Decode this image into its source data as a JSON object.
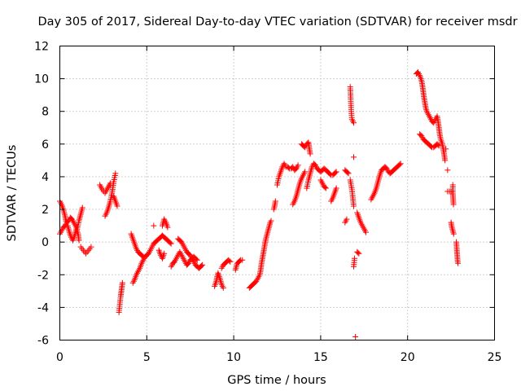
{
  "chart_data": {
    "type": "scatter",
    "title": "Day 305 of 2017, Sidereal Day-to-day VTEC variation (SDTVAR) for receiver msdr",
    "xlabel": "GPS time / hours",
    "ylabel": "SDTVAR / TECUs",
    "xlim": [
      0,
      25
    ],
    "ylim": [
      -6,
      12
    ],
    "xticks": [
      0,
      5,
      10,
      15,
      20,
      25
    ],
    "yticks": [
      -6,
      -4,
      -2,
      0,
      2,
      4,
      6,
      8,
      10,
      12
    ],
    "xtick_labels": [
      "0",
      "5",
      "10",
      "15",
      "20",
      "25"
    ],
    "ytick_labels": [
      "-6",
      "-4",
      "-2",
      "0",
      "2",
      "4",
      "6",
      "8",
      "10",
      "12"
    ],
    "grid": true,
    "marker": "+",
    "color": "#ff0000",
    "segments": [
      [
        [
          0.0,
          0.5
        ],
        [
          0.1,
          0.7
        ],
        [
          0.2,
          0.9
        ],
        [
          0.3,
          1.0
        ],
        [
          0.4,
          1.2
        ],
        [
          0.5,
          1.3
        ],
        [
          0.6,
          1.5
        ],
        [
          0.7,
          1.4
        ],
        [
          0.8,
          1.2
        ],
        [
          0.9,
          1.0
        ],
        [
          1.0,
          0.8
        ],
        [
          1.1,
          1.3
        ],
        [
          1.2,
          1.7
        ],
        [
          1.3,
          2.1
        ]
      ],
      [
        [
          0.0,
          2.5
        ],
        [
          0.1,
          2.3
        ],
        [
          0.2,
          2.0
        ],
        [
          0.3,
          1.6
        ],
        [
          0.35,
          1.3
        ]
      ],
      [
        [
          0.45,
          1.0
        ],
        [
          0.55,
          0.6
        ],
        [
          0.65,
          0.3
        ],
        [
          0.75,
          0.1
        ],
        [
          0.85,
          0.4
        ],
        [
          0.95,
          0.8
        ],
        [
          1.05,
          0.5
        ],
        [
          1.1,
          0.1
        ]
      ],
      [
        [
          1.2,
          -0.3
        ],
        [
          1.35,
          -0.5
        ],
        [
          1.5,
          -0.7
        ],
        [
          1.65,
          -0.5
        ],
        [
          1.8,
          -0.3
        ]
      ],
      [
        [
          2.3,
          3.5
        ],
        [
          2.45,
          3.2
        ],
        [
          2.6,
          3.0
        ],
        [
          2.75,
          3.3
        ],
        [
          2.9,
          3.6
        ]
      ],
      [
        [
          2.6,
          1.6
        ],
        [
          2.7,
          1.8
        ],
        [
          2.8,
          2.1
        ],
        [
          2.9,
          2.5
        ],
        [
          3.0,
          3.0
        ],
        [
          3.1,
          3.7
        ],
        [
          3.2,
          4.2
        ]
      ],
      [
        [
          3.1,
          2.8
        ],
        [
          3.2,
          2.5
        ],
        [
          3.3,
          2.2
        ]
      ],
      [
        [
          3.4,
          -4.3
        ],
        [
          3.45,
          -3.8
        ],
        [
          3.5,
          -3.3
        ],
        [
          3.55,
          -2.9
        ],
        [
          3.6,
          -2.5
        ]
      ],
      [
        [
          4.1,
          0.5
        ],
        [
          4.2,
          0.2
        ],
        [
          4.3,
          -0.1
        ],
        [
          4.4,
          -0.4
        ],
        [
          4.5,
          -0.6
        ],
        [
          4.6,
          -0.7
        ],
        [
          4.7,
          -0.8
        ],
        [
          4.8,
          -0.9
        ],
        [
          4.9,
          -0.9
        ],
        [
          5.0,
          -0.8
        ],
        [
          5.1,
          -0.7
        ],
        [
          5.2,
          -0.5
        ],
        [
          5.3,
          -0.3
        ],
        [
          5.4,
          -0.1
        ],
        [
          5.5,
          0.0
        ],
        [
          5.6,
          0.1
        ],
        [
          5.7,
          0.2
        ],
        [
          5.8,
          0.3
        ],
        [
          5.9,
          0.4
        ],
        [
          6.0,
          0.3
        ],
        [
          6.1,
          0.2
        ],
        [
          6.2,
          0.1
        ],
        [
          6.3,
          0.0
        ],
        [
          6.4,
          -0.1
        ]
      ],
      [
        [
          4.2,
          -2.5
        ],
        [
          4.3,
          -2.3
        ],
        [
          4.4,
          -2.0
        ],
        [
          4.5,
          -1.8
        ],
        [
          4.6,
          -1.6
        ],
        [
          4.7,
          -1.3
        ],
        [
          4.8,
          -1.1
        ],
        [
          4.9,
          -0.9
        ]
      ],
      [
        [
          5.9,
          1.0
        ],
        [
          6.0,
          1.4
        ],
        [
          6.1,
          1.2
        ],
        [
          6.2,
          0.9
        ]
      ],
      [
        [
          5.4,
          1.0
        ]
      ],
      [
        [
          5.7,
          -0.5
        ],
        [
          5.8,
          -0.8
        ],
        [
          5.9,
          -1.0
        ],
        [
          6.0,
          -0.7
        ]
      ],
      [
        [
          6.4,
          -1.5
        ],
        [
          6.5,
          -1.3
        ],
        [
          6.6,
          -1.2
        ],
        [
          6.7,
          -1.0
        ],
        [
          6.8,
          -0.8
        ],
        [
          6.9,
          -0.6
        ],
        [
          7.0,
          -0.8
        ],
        [
          7.1,
          -1.0
        ],
        [
          7.2,
          -1.2
        ],
        [
          7.3,
          -1.4
        ],
        [
          7.4,
          -1.3
        ],
        [
          7.5,
          -1.1
        ],
        [
          7.6,
          -1.0
        ],
        [
          7.7,
          -0.9
        ],
        [
          7.8,
          -1.0
        ],
        [
          7.9,
          -1.1
        ]
      ],
      [
        [
          6.8,
          0.2
        ],
        [
          6.9,
          0.1
        ],
        [
          7.0,
          0.0
        ],
        [
          7.1,
          -0.2
        ],
        [
          7.2,
          -0.4
        ],
        [
          7.3,
          -0.6
        ],
        [
          7.4,
          -0.7
        ],
        [
          7.5,
          -0.8
        ],
        [
          7.6,
          -1.0
        ],
        [
          7.7,
          -1.2
        ],
        [
          7.8,
          -1.4
        ],
        [
          7.9,
          -1.5
        ],
        [
          8.0,
          -1.6
        ],
        [
          8.1,
          -1.5
        ],
        [
          8.2,
          -1.4
        ]
      ],
      [
        [
          8.9,
          -2.7
        ],
        [
          9.0,
          -2.4
        ],
        [
          9.05,
          -2.1
        ],
        [
          9.1,
          -1.9
        ],
        [
          9.2,
          -2.2
        ],
        [
          9.3,
          -2.6
        ],
        [
          9.4,
          -2.8
        ]
      ],
      [
        [
          9.3,
          -1.6
        ],
        [
          9.4,
          -1.4
        ],
        [
          9.5,
          -1.3
        ],
        [
          9.6,
          -1.2
        ],
        [
          9.7,
          -1.1
        ],
        [
          9.8,
          -1.2
        ]
      ],
      [
        [
          10.1,
          -1.7
        ],
        [
          10.15,
          -1.5
        ],
        [
          10.2,
          -1.3
        ],
        [
          10.3,
          -1.2
        ],
        [
          10.4,
          -1.1
        ],
        [
          10.5,
          -1.1
        ]
      ],
      [
        [
          10.9,
          -2.8
        ],
        [
          11.0,
          -2.7
        ],
        [
          11.1,
          -2.6
        ],
        [
          11.2,
          -2.5
        ],
        [
          11.3,
          -2.4
        ],
        [
          11.4,
          -2.2
        ],
        [
          11.5,
          -2.0
        ],
        [
          11.55,
          -1.7
        ],
        [
          11.6,
          -1.3
        ],
        [
          11.65,
          -1.0
        ],
        [
          11.7,
          -0.7
        ],
        [
          11.75,
          -0.4
        ],
        [
          11.8,
          -0.1
        ],
        [
          11.85,
          0.2
        ],
        [
          11.9,
          0.4
        ],
        [
          11.95,
          0.6
        ],
        [
          12.0,
          0.8
        ],
        [
          12.05,
          1.0
        ],
        [
          12.1,
          1.2
        ],
        [
          12.15,
          1.3
        ]
      ],
      [
        [
          12.3,
          2.0
        ],
        [
          12.35,
          2.2
        ],
        [
          12.4,
          2.5
        ]
      ],
      [
        [
          12.5,
          3.5
        ],
        [
          12.6,
          4.0
        ],
        [
          12.7,
          4.3
        ],
        [
          12.8,
          4.6
        ],
        [
          12.9,
          4.8
        ],
        [
          13.0,
          4.6
        ]
      ],
      [
        [
          13.1,
          4.6
        ],
        [
          13.2,
          4.5
        ],
        [
          13.3,
          4.5
        ],
        [
          13.4,
          4.6
        ],
        [
          13.5,
          4.4
        ],
        [
          13.6,
          4.5
        ],
        [
          13.7,
          4.7
        ]
      ],
      [
        [
          13.4,
          2.3
        ],
        [
          13.5,
          2.5
        ],
        [
          13.6,
          2.8
        ],
        [
          13.7,
          3.2
        ],
        [
          13.8,
          3.6
        ],
        [
          13.9,
          3.9
        ],
        [
          14.0,
          4.1
        ],
        [
          14.1,
          4.3
        ]
      ],
      [
        [
          13.9,
          6.0
        ],
        [
          14.0,
          5.9
        ],
        [
          14.1,
          5.8
        ],
        [
          14.2,
          6.0
        ],
        [
          14.3,
          6.1
        ],
        [
          14.35,
          5.7
        ],
        [
          14.4,
          5.4
        ]
      ],
      [
        [
          14.2,
          3.3
        ],
        [
          14.3,
          3.8
        ],
        [
          14.4,
          4.2
        ],
        [
          14.5,
          4.6
        ],
        [
          14.6,
          4.8
        ],
        [
          14.7,
          4.7
        ],
        [
          14.8,
          4.5
        ],
        [
          14.9,
          4.4
        ],
        [
          15.0,
          4.3
        ],
        [
          15.1,
          4.4
        ],
        [
          15.2,
          4.5
        ],
        [
          15.3,
          4.4
        ],
        [
          15.4,
          4.3
        ],
        [
          15.5,
          4.2
        ],
        [
          15.6,
          4.1
        ],
        [
          15.7,
          4.1
        ],
        [
          15.8,
          4.2
        ],
        [
          15.9,
          4.3
        ]
      ],
      [
        [
          15.0,
          3.8
        ],
        [
          15.1,
          3.6
        ],
        [
          15.2,
          3.4
        ],
        [
          15.3,
          3.3
        ]
      ],
      [
        [
          15.6,
          2.5
        ],
        [
          15.7,
          2.7
        ],
        [
          15.8,
          3.0
        ],
        [
          15.9,
          3.3
        ]
      ],
      [
        [
          16.4,
          4.4
        ],
        [
          16.5,
          4.3
        ],
        [
          16.6,
          4.2
        ]
      ],
      [
        [
          16.4,
          1.2
        ],
        [
          16.5,
          1.4
        ]
      ],
      [
        [
          16.7,
          9.5
        ],
        [
          16.72,
          9.0
        ],
        [
          16.74,
          8.5
        ],
        [
          16.76,
          8.0
        ],
        [
          16.8,
          7.5
        ],
        [
          16.9,
          7.3
        ]
      ],
      [
        [
          16.7,
          3.8
        ],
        [
          16.8,
          3.2
        ],
        [
          16.85,
          2.7
        ],
        [
          16.9,
          2.2
        ]
      ],
      [
        [
          16.9,
          5.2
        ]
      ],
      [
        [
          16.9,
          -1.5
        ],
        [
          16.95,
          -1.0
        ]
      ],
      [
        [
          17.0,
          -5.8
        ]
      ],
      [
        [
          17.1,
          -0.6
        ],
        [
          17.2,
          -0.7
        ]
      ],
      [
        [
          17.1,
          1.8
        ],
        [
          17.2,
          1.5
        ],
        [
          17.3,
          1.2
        ],
        [
          17.4,
          1.0
        ],
        [
          17.5,
          0.8
        ],
        [
          17.6,
          0.6
        ]
      ],
      [
        [
          17.9,
          2.6
        ],
        [
          18.0,
          2.8
        ],
        [
          18.1,
          3.0
        ],
        [
          18.2,
          3.3
        ],
        [
          18.3,
          3.7
        ],
        [
          18.4,
          4.1
        ],
        [
          18.5,
          4.4
        ],
        [
          18.6,
          4.5
        ],
        [
          18.7,
          4.6
        ],
        [
          18.8,
          4.5
        ],
        [
          18.9,
          4.3
        ],
        [
          19.0,
          4.2
        ],
        [
          19.1,
          4.3
        ],
        [
          19.2,
          4.4
        ],
        [
          19.3,
          4.5
        ],
        [
          19.4,
          4.6
        ],
        [
          19.5,
          4.7
        ],
        [
          19.6,
          4.8
        ]
      ],
      [
        [
          20.5,
          10.3
        ],
        [
          20.6,
          10.4
        ],
        [
          20.7,
          10.2
        ],
        [
          20.8,
          9.9
        ],
        [
          20.85,
          9.6
        ],
        [
          20.9,
          9.2
        ],
        [
          20.95,
          8.8
        ],
        [
          21.0,
          8.5
        ],
        [
          21.05,
          8.2
        ],
        [
          21.1,
          8.0
        ],
        [
          21.2,
          7.8
        ],
        [
          21.3,
          7.6
        ],
        [
          21.4,
          7.4
        ],
        [
          21.5,
          7.3
        ],
        [
          21.6,
          7.5
        ],
        [
          21.7,
          7.7
        ],
        [
          21.75,
          7.4
        ],
        [
          21.8,
          7.0
        ],
        [
          21.85,
          6.6
        ],
        [
          21.9,
          6.3
        ],
        [
          22.0,
          6.0
        ],
        [
          22.05,
          5.7
        ],
        [
          22.1,
          5.4
        ],
        [
          22.15,
          5.0
        ]
      ],
      [
        [
          20.7,
          6.6
        ],
        [
          20.8,
          6.5
        ],
        [
          20.9,
          6.3
        ],
        [
          21.0,
          6.2
        ],
        [
          21.1,
          6.1
        ],
        [
          21.2,
          6.0
        ],
        [
          21.3,
          5.9
        ],
        [
          21.4,
          5.8
        ],
        [
          21.5,
          5.8
        ],
        [
          21.6,
          5.9
        ],
        [
          21.7,
          6.0
        ],
        [
          21.8,
          5.9
        ]
      ],
      [
        [
          22.2,
          5.7
        ]
      ],
      [
        [
          22.3,
          4.4
        ]
      ],
      [
        [
          22.3,
          3.1
        ],
        [
          22.4,
          3.1
        ],
        [
          22.5,
          3.1
        ]
      ],
      [
        [
          22.6,
          3.5
        ],
        [
          22.6,
          3.0
        ],
        [
          22.62,
          2.6
        ],
        [
          22.64,
          2.3
        ]
      ],
      [
        [
          22.5,
          1.2
        ],
        [
          22.55,
          0.9
        ],
        [
          22.6,
          0.7
        ],
        [
          22.65,
          0.5
        ]
      ],
      [
        [
          22.8,
          0.0
        ],
        [
          22.82,
          -0.3
        ],
        [
          22.84,
          -0.6
        ],
        [
          22.86,
          -0.9
        ],
        [
          22.88,
          -1.2
        ],
        [
          22.9,
          -1.3
        ]
      ]
    ]
  }
}
